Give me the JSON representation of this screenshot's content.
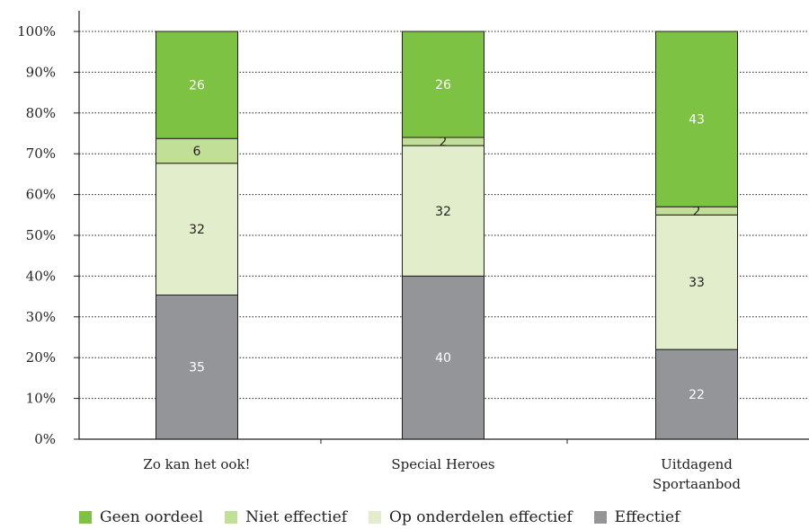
{
  "chart_data": {
    "type": "bar",
    "stacked": true,
    "percent": true,
    "categories": [
      [
        "Zo kan het ook!"
      ],
      [
        "Special Heroes"
      ],
      [
        "Uitdagend",
        "Sportaanbod"
      ]
    ],
    "series": [
      {
        "name": "Effectief",
        "color": "#939598",
        "label_color": "#ffffff",
        "values": [
          35,
          40,
          22
        ]
      },
      {
        "name": "Op onderdelen effectief",
        "color": "#e2edcc",
        "label_color": "#231f20",
        "values": [
          32,
          32,
          33
        ]
      },
      {
        "name": "Niet effectief",
        "color": "#c2df98",
        "label_color": "#231f20",
        "values": [
          6,
          2,
          2
        ]
      },
      {
        "name": "Geen oordeel",
        "color": "#7dc242",
        "label_color": "#ffffff",
        "values": [
          26,
          26,
          43
        ]
      }
    ],
    "ylim": [
      0,
      100
    ],
    "yticks": [
      "0%",
      "10%",
      "20%",
      "30%",
      "40%",
      "50%",
      "60%",
      "70%",
      "80%",
      "90%",
      "100%"
    ],
    "grid": "horizontal dotted",
    "legend": {
      "position": "bottom",
      "items": [
        {
          "name": "Geen oordeel",
          "color": "#7dc242"
        },
        {
          "name": "Niet effectief",
          "color": "#c2df98"
        },
        {
          "name": "Op onderdelen effectief",
          "color": "#e2edcc"
        },
        {
          "name": "Effectief",
          "color": "#939598"
        }
      ]
    }
  }
}
